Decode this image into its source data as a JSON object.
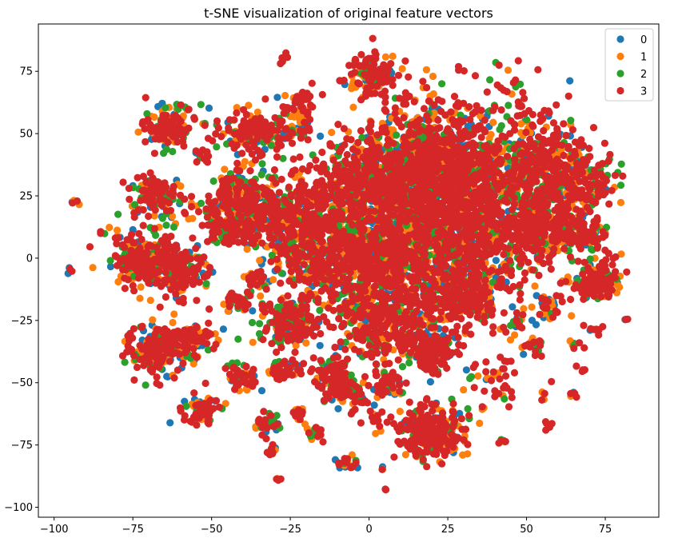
{
  "chart_data": {
    "type": "scatter",
    "title": "t-SNE visualization of original feature vectors",
    "xlabel": "",
    "ylabel": "",
    "xlim": [
      -105,
      92
    ],
    "ylim": [
      -104,
      94
    ],
    "x_ticks": [
      -100,
      -75,
      -50,
      -25,
      0,
      25,
      50,
      75
    ],
    "y_ticks": [
      -100,
      -75,
      -50,
      -25,
      0,
      25,
      50,
      75
    ],
    "grid": false,
    "legend": "top-right",
    "series": [
      {
        "name": "0",
        "color": "#1f77b4"
      },
      {
        "name": "1",
        "color": "#ff7f0e"
      },
      {
        "name": "2",
        "color": "#2ca02c"
      },
      {
        "name": "3",
        "color": "#d62728"
      }
    ],
    "clusters": [
      {
        "x": -64,
        "y": 53,
        "spread": 4.5,
        "n": 140
      },
      {
        "x": -38,
        "y": 50,
        "spread": 5,
        "n": 150
      },
      {
        "x": -25,
        "y": 52,
        "spread": 4,
        "n": 60
      },
      {
        "x": -22,
        "y": 62,
        "spread": 2.5,
        "n": 40
      },
      {
        "x": -27,
        "y": 80,
        "spread": 1,
        "n": 6
      },
      {
        "x": 0,
        "y": 74,
        "spread": 4.5,
        "n": 130
      },
      {
        "x": -52,
        "y": 41,
        "spread": 2,
        "n": 12
      },
      {
        "x": -68,
        "y": 25,
        "spread": 4.5,
        "n": 120
      },
      {
        "x": -93,
        "y": 22,
        "spread": 0.8,
        "n": 5
      },
      {
        "x": -85,
        "y": 10,
        "spread": 0.8,
        "n": 4
      },
      {
        "x": -95,
        "y": -5,
        "spread": 0.8,
        "n": 4
      },
      {
        "x": -72,
        "y": 0,
        "spread": 5,
        "n": 200
      },
      {
        "x": -60,
        "y": -5,
        "spread": 5,
        "n": 160
      },
      {
        "x": -50,
        "y": 20,
        "spread": 3,
        "n": 40
      },
      {
        "x": -38,
        "y": 15,
        "spread": 6,
        "n": 230
      },
      {
        "x": -40,
        "y": 28,
        "spread": 4,
        "n": 90
      },
      {
        "x": -45,
        "y": 10,
        "spread": 3,
        "n": 50
      },
      {
        "x": -42,
        "y": -18,
        "spread": 2.5,
        "n": 35
      },
      {
        "x": -35,
        "y": -8,
        "spread": 2.5,
        "n": 30
      },
      {
        "x": -67,
        "y": -37,
        "spread": 5,
        "n": 200
      },
      {
        "x": -55,
        "y": -32,
        "spread": 3.5,
        "n": 70
      },
      {
        "x": -53,
        "y": -61,
        "spread": 3,
        "n": 80
      },
      {
        "x": -40,
        "y": -48,
        "spread": 2.5,
        "n": 50
      },
      {
        "x": -33,
        "y": -67,
        "spread": 2.5,
        "n": 30
      },
      {
        "x": -31,
        "y": -77,
        "spread": 1.2,
        "n": 10
      },
      {
        "x": -29,
        "y": -89,
        "spread": 0.6,
        "n": 4
      },
      {
        "x": -27,
        "y": -45,
        "spread": 2.5,
        "n": 40
      },
      {
        "x": -22,
        "y": -62,
        "spread": 1.5,
        "n": 15
      },
      {
        "x": -16,
        "y": -70,
        "spread": 1.5,
        "n": 15
      },
      {
        "x": -8,
        "y": -82,
        "spread": 1.8,
        "n": 25
      },
      {
        "x": -12,
        "y": -45,
        "spread": 3,
        "n": 60
      },
      {
        "x": -9,
        "y": -52,
        "spread": 3,
        "n": 80
      },
      {
        "x": 6,
        "y": -50,
        "spread": 2.5,
        "n": 50
      },
      {
        "x": 5,
        "y": -93,
        "spread": 0.6,
        "n": 3
      },
      {
        "x": 5,
        "y": -85,
        "spread": 0.6,
        "n": 3
      },
      {
        "x": 20,
        "y": -70,
        "spread": 5,
        "n": 280
      },
      {
        "x": 20,
        "y": -38,
        "spread": 4,
        "n": 150
      },
      {
        "x": -20,
        "y": 20,
        "spread": 8,
        "n": 350
      },
      {
        "x": -15,
        "y": 0,
        "spread": 8,
        "n": 350
      },
      {
        "x": -25,
        "y": -25,
        "spread": 5,
        "n": 200
      },
      {
        "x": 5,
        "y": 30,
        "spread": 10,
        "n": 650
      },
      {
        "x": 5,
        "y": 0,
        "spread": 10,
        "n": 650
      },
      {
        "x": 5,
        "y": -25,
        "spread": 8,
        "n": 350
      },
      {
        "x": 25,
        "y": 35,
        "spread": 10,
        "n": 750
      },
      {
        "x": 30,
        "y": 10,
        "spread": 10,
        "n": 650
      },
      {
        "x": 30,
        "y": -15,
        "spread": 7,
        "n": 300
      },
      {
        "x": 55,
        "y": 35,
        "spread": 8,
        "n": 450
      },
      {
        "x": 55,
        "y": 12,
        "spread": 7,
        "n": 350
      },
      {
        "x": 68,
        "y": 10,
        "spread": 4,
        "n": 80
      },
      {
        "x": 72,
        "y": -10,
        "spread": 4,
        "n": 150
      },
      {
        "x": 57,
        "y": -20,
        "spread": 2.5,
        "n": 35
      },
      {
        "x": 47,
        "y": -25,
        "spread": 1.5,
        "n": 15
      },
      {
        "x": 52,
        "y": -35,
        "spread": 2,
        "n": 20
      },
      {
        "x": 72,
        "y": -28,
        "spread": 1.3,
        "n": 10
      },
      {
        "x": 65,
        "y": -35,
        "spread": 1,
        "n": 8
      },
      {
        "x": 68,
        "y": -45,
        "spread": 1,
        "n": 5
      },
      {
        "x": 55,
        "y": -55,
        "spread": 1,
        "n": 6
      },
      {
        "x": 57,
        "y": -67,
        "spread": 1,
        "n": 6
      },
      {
        "x": 65,
        "y": -55,
        "spread": 1,
        "n": 5
      },
      {
        "x": 42,
        "y": -74,
        "spread": 1,
        "n": 6
      },
      {
        "x": 82,
        "y": -25,
        "spread": 0.6,
        "n": 3
      },
      {
        "x": 40,
        "y": -50,
        "spread": 5,
        "n": 40
      },
      {
        "x": 45,
        "y": 60,
        "spread": 8,
        "n": 80
      },
      {
        "x": 15,
        "y": 55,
        "spread": 8,
        "n": 100
      },
      {
        "x": 70,
        "y": 30,
        "spread": 6,
        "n": 90
      },
      {
        "x": 0,
        "y": -60,
        "spread": 6,
        "n": 40
      }
    ]
  }
}
